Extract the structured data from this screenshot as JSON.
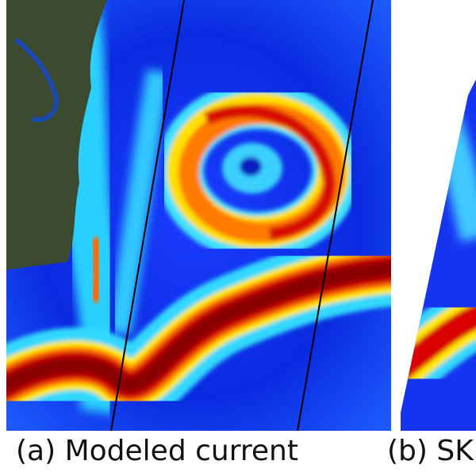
{
  "panels": [
    {
      "caption": "(a) Modeled current"
    },
    {
      "caption": "(b) SK"
    }
  ]
}
